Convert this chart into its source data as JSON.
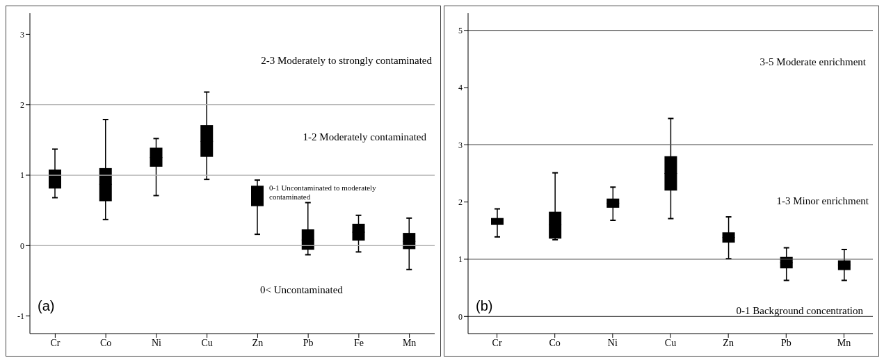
{
  "chart_data": [
    {
      "type": "box",
      "categories": [
        "Cr",
        "Co",
        "Ni",
        "Cu",
        "Zn",
        "Pb",
        "Fe",
        "Mn"
      ],
      "color": "#000000",
      "boxes": [
        {
          "low": 0.68,
          "q1": 0.81,
          "median": 0.95,
          "q3": 1.08,
          "high": 1.37
        },
        {
          "low": 0.37,
          "q1": 0.63,
          "median": 0.87,
          "q3": 1.1,
          "high": 1.79
        },
        {
          "low": 0.71,
          "q1": 1.12,
          "median": 1.25,
          "q3": 1.39,
          "high": 1.52
        },
        {
          "low": 0.94,
          "q1": 1.26,
          "median": 1.48,
          "q3": 1.71,
          "high": 2.18
        },
        {
          "low": 0.16,
          "q1": 0.56,
          "median": 0.7,
          "q3": 0.85,
          "high": 0.93
        },
        {
          "low": -0.13,
          "q1": -0.06,
          "median": 0.08,
          "q3": 0.23,
          "high": 0.61
        },
        {
          "low": -0.09,
          "q1": 0.07,
          "median": 0.19,
          "q3": 0.31,
          "high": 0.43
        },
        {
          "low": -0.34,
          "q1": -0.05,
          "median": 0.06,
          "q3": 0.18,
          "high": 0.39
        }
      ],
      "ylim": [
        -1.25,
        3.3
      ],
      "yticks": [
        -1,
        0,
        1,
        2,
        3
      ],
      "grid": false,
      "ref_lines": [
        {
          "axis": "y",
          "value": 0,
          "color": "#b0b0b0"
        },
        {
          "axis": "y",
          "value": 1,
          "color": "#b0b0b0"
        },
        {
          "axis": "y",
          "value": 2,
          "color": "#b0b0b0"
        }
      ],
      "annotations": [
        "2-3 Moderately to strongly contaminated",
        "1-2 Moderately contaminated",
        "0-1 Uncontaminated to moderately contaminated",
        "0< Uncontaminated",
        "(a)"
      ]
    },
    {
      "type": "box",
      "categories": [
        "Cr",
        "Co",
        "Ni",
        "Cu",
        "Zn",
        "Pb",
        "Mn"
      ],
      "color": "#000000",
      "boxes": [
        {
          "low": 1.39,
          "q1": 1.6,
          "median": 1.66,
          "q3": 1.72,
          "high": 1.88
        },
        {
          "low": 1.34,
          "q1": 1.36,
          "median": 1.6,
          "q3": 1.83,
          "high": 2.51
        },
        {
          "low": 1.68,
          "q1": 1.9,
          "median": 1.98,
          "q3": 2.06,
          "high": 2.26
        },
        {
          "low": 1.71,
          "q1": 2.2,
          "median": 2.5,
          "q3": 2.8,
          "high": 3.46
        },
        {
          "low": 1.01,
          "q1": 1.29,
          "median": 1.38,
          "q3": 1.47,
          "high": 1.74
        },
        {
          "low": 0.63,
          "q1": 0.84,
          "median": 0.94,
          "q3": 1.04,
          "high": 1.2
        },
        {
          "low": 0.63,
          "q1": 0.81,
          "median": 0.9,
          "q3": 0.98,
          "high": 1.17
        }
      ],
      "ylim": [
        -0.3,
        5.3
      ],
      "yticks": [
        0,
        1,
        2,
        3,
        4,
        5
      ],
      "grid": false,
      "ref_lines": [
        {
          "axis": "y",
          "value": 0,
          "color": "#555555"
        },
        {
          "axis": "y",
          "value": 1,
          "color": "#555555"
        },
        {
          "axis": "y",
          "value": 3,
          "color": "#555555"
        },
        {
          "axis": "y",
          "value": 5,
          "color": "#555555"
        }
      ],
      "annotations": [
        "3-5 Moderate enrichment",
        "1-3 Minor enrichment",
        "0-1 Background concentration",
        "(b)"
      ]
    }
  ]
}
